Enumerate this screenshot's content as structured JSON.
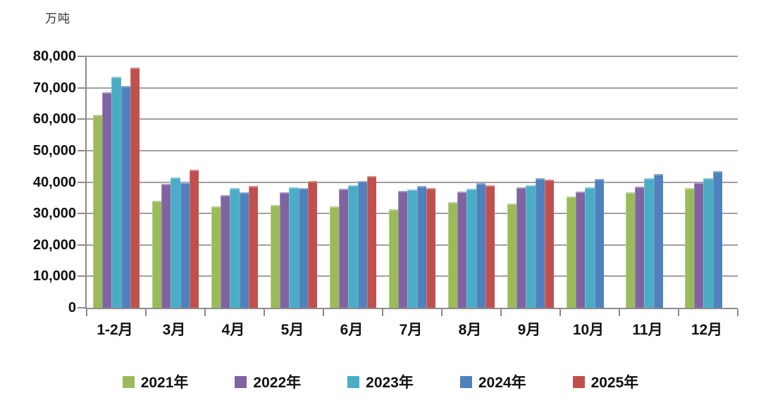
{
  "chart": {
    "unit_label": "万吨"
  },
  "chart_data": {
    "type": "bar",
    "title": "",
    "xlabel": "",
    "ylabel": "万吨",
    "ylim": [
      0,
      80000
    ],
    "y_tick_step": 10000,
    "y_tick_labels": [
      "0",
      "10,000",
      "20,000",
      "30,000",
      "40,000",
      "50,000",
      "60,000",
      "70,000",
      "80,000"
    ],
    "grid": true,
    "legend_position": "bottom",
    "axis_color": "#8c8c8c",
    "grid_color": "#a0a0a0",
    "categories": [
      "1-2月",
      "3月",
      "4月",
      "5月",
      "6月",
      "7月",
      "8月",
      "9月",
      "10月",
      "11月",
      "12月"
    ],
    "series": [
      {
        "name": "2021年",
        "color": "#9BBB59",
        "values": [
          61500,
          34000,
          32200,
          32700,
          32300,
          31300,
          33600,
          33200,
          35500,
          36800,
          38100
        ]
      },
      {
        "name": "2022年",
        "color": "#8064A2",
        "values": [
          68600,
          39400,
          35800,
          36700,
          37800,
          37200,
          37000,
          38400,
          36900,
          38600,
          39800
        ]
      },
      {
        "name": "2023年",
        "color": "#4BACC6",
        "values": [
          73400,
          41500,
          38000,
          38400,
          39100,
          37600,
          37900,
          39000,
          38300,
          41200,
          41300
        ]
      },
      {
        "name": "2024年",
        "color": "#4F81BD",
        "values": [
          70500,
          39900,
          36800,
          38100,
          40400,
          38800,
          39600,
          41300,
          41000,
          42500,
          43500
        ]
      },
      {
        "name": "2025年",
        "color": "#C0504D",
        "values": [
          76500,
          44000,
          38700,
          40400,
          42000,
          38100,
          38900,
          40800,
          null,
          null,
          null
        ]
      }
    ]
  }
}
